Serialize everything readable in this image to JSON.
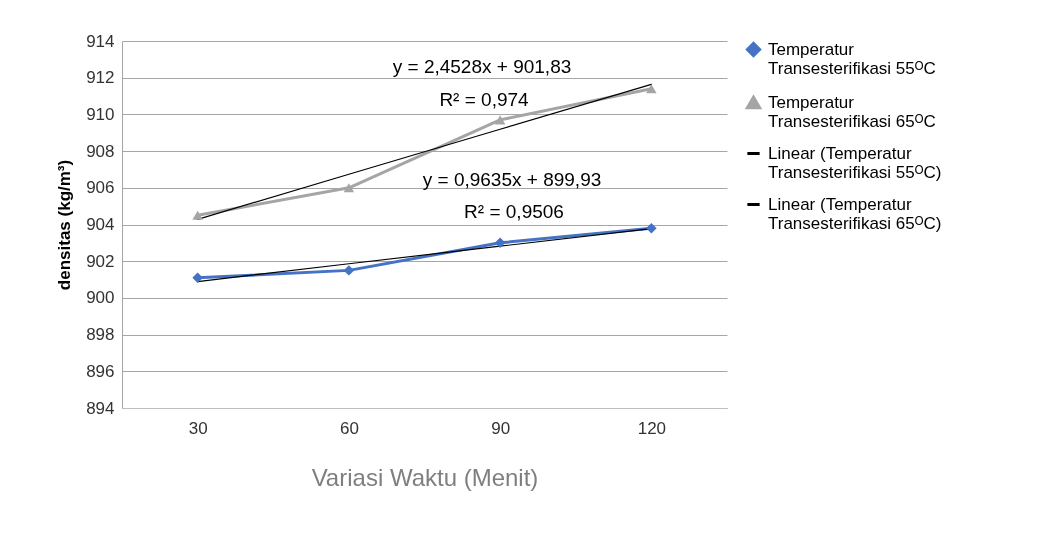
{
  "chart_data": {
    "type": "line",
    "xlabel": "Variasi Waktu (Menit)",
    "ylabel": "densitas (kg/m³)",
    "categories": [
      "30",
      "60",
      "90",
      "120"
    ],
    "series": [
      {
        "name": "Temperatur Transesterifikasi 55ᴼC",
        "color": "#4472c4",
        "marker": "diamond",
        "values": [
          901.1,
          901.5,
          903.0,
          903.8
        ]
      },
      {
        "name": "Temperatur Transesterifikasi 65ᴼC",
        "color": "#a5a5a5",
        "marker": "triangle",
        "values": [
          904.5,
          906.0,
          909.7,
          911.4
        ]
      },
      {
        "name": "Linear (Temperatur Transesterifikasi 55ᴼC)",
        "color": "#000000",
        "marker": "none",
        "values": [
          900.89,
          901.86,
          902.82,
          903.78
        ]
      },
      {
        "name": "Linear (Temperatur Transesterifikasi 65ᴼC)",
        "color": "#000000",
        "marker": "none",
        "values": [
          904.28,
          906.74,
          909.19,
          911.64
        ]
      }
    ],
    "ylim": [
      894,
      914
    ],
    "yticks": [
      894,
      896,
      898,
      900,
      902,
      904,
      906,
      908,
      910,
      912,
      914
    ],
    "grid": "y",
    "legend": "right",
    "annotations": [
      "y = 2,4528x + 901,83",
      "R² = 0,974",
      "y = 0,9635x + 899,93",
      "R² = 0,9506"
    ]
  }
}
